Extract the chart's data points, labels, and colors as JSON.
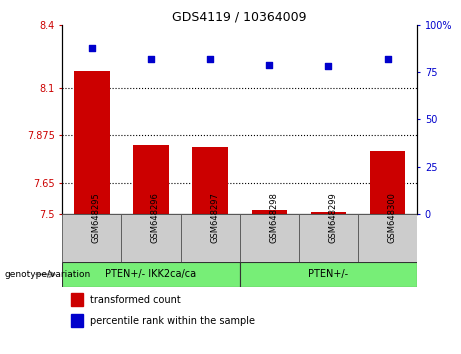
{
  "title": "GDS4119 / 10364009",
  "samples": [
    "GSM648295",
    "GSM648296",
    "GSM648297",
    "GSM648298",
    "GSM648299",
    "GSM648300"
  ],
  "bar_values": [
    8.18,
    7.83,
    7.82,
    7.52,
    7.51,
    7.8
  ],
  "percentile_values": [
    88,
    82,
    82,
    79,
    78,
    82
  ],
  "bar_color": "#cc0000",
  "dot_color": "#0000cc",
  "ylim_left": [
    7.5,
    8.4
  ],
  "ylim_right": [
    0,
    100
  ],
  "yticks_left": [
    7.5,
    7.65,
    7.875,
    8.1,
    8.4
  ],
  "ytick_labels_left": [
    "7.5",
    "7.65",
    "7.875",
    "8.1",
    "8.4"
  ],
  "yticks_right": [
    0,
    25,
    50,
    75,
    100
  ],
  "ytick_labels_right": [
    "0",
    "25",
    "50",
    "75",
    "100%"
  ],
  "hlines": [
    8.1,
    7.875,
    7.65
  ],
  "group1_label": "PTEN+/- IKK2ca/ca",
  "group2_label": "PTEN+/-",
  "group_color": "#77ee77",
  "legend_bar_label": "transformed count",
  "legend_dot_label": "percentile rank within the sample",
  "genotype_label": "genotype/variation",
  "bar_width": 0.6,
  "label_area_color": "#cccccc",
  "dot_size": 18
}
